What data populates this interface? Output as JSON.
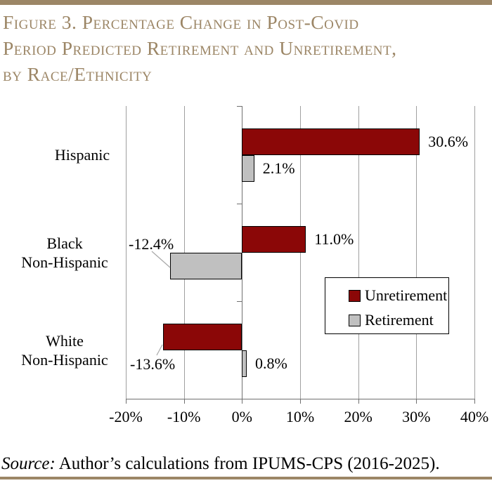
{
  "page": {
    "title": "Figure 3. Percentage Change in Post-Covid\nPeriod Predicted Retirement and Unretirement,\nby Race/Ethnicity",
    "source_prefix": "Source:",
    "source_rest": " Author’s calculations from IPUMS-CPS (2016-2025).",
    "accent_color": "#9C8666"
  },
  "chart_data": {
    "type": "bar",
    "orientation": "horizontal",
    "title": "Figure 3. Percentage Change in Post-Covid Period Predicted Retirement and Unretirement, by Race/Ethnicity",
    "categories": [
      "Hispanic",
      "Black\nNon-Hispanic",
      "White\nNon-Hispanic"
    ],
    "series": [
      {
        "name": "Unretirement",
        "color": "#8B0707",
        "values": [
          30.6,
          11.0,
          -13.6
        ],
        "data_labels": [
          "30.6%",
          "11.0%",
          "-13.6%"
        ]
      },
      {
        "name": "Retirement",
        "color": "#C0C0C0",
        "values": [
          2.1,
          -12.4,
          0.8
        ],
        "data_labels": [
          "2.1%",
          "-12.4%",
          "0.8%"
        ]
      }
    ],
    "xlabel": "",
    "ylabel": "",
    "xlim": [
      -20,
      40
    ],
    "x_ticks": [
      -20,
      -10,
      0,
      10,
      20,
      30,
      40
    ],
    "x_tick_labels": [
      "-20%",
      "-10%",
      "0%",
      "10%",
      "20%",
      "30%",
      "40%"
    ],
    "grid": "vertical-gridlines",
    "legend_position": "inside-bottom-right",
    "legend_entries": [
      "Unretirement",
      "Retirement"
    ],
    "source": "Source: Author’s calculations from IPUMS-CPS (2016-2025)."
  }
}
